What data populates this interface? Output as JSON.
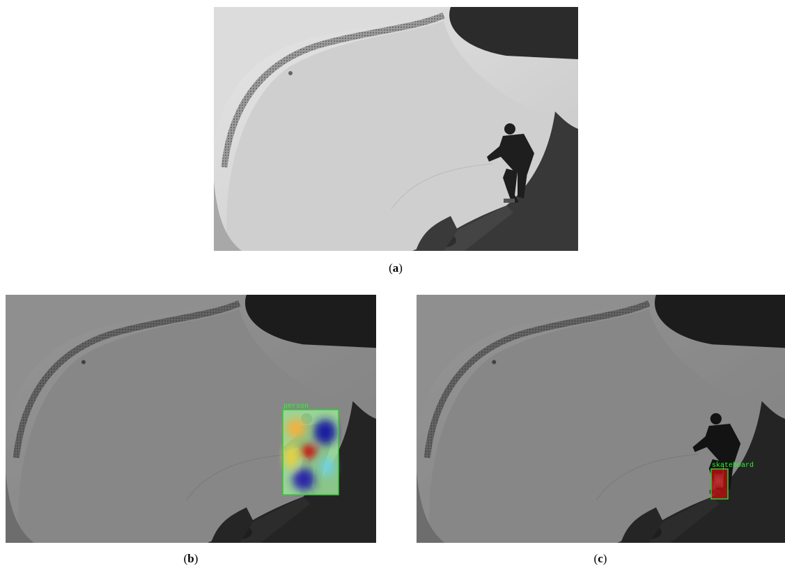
{
  "figure": {
    "panels": [
      {
        "caption": [
          "(",
          "a",
          ")"
        ]
      },
      {
        "caption": [
          "(",
          "b",
          ")"
        ],
        "detection": "person"
      },
      {
        "caption": [
          "(",
          "c",
          ")"
        ],
        "detection": "skateboard"
      }
    ]
  }
}
